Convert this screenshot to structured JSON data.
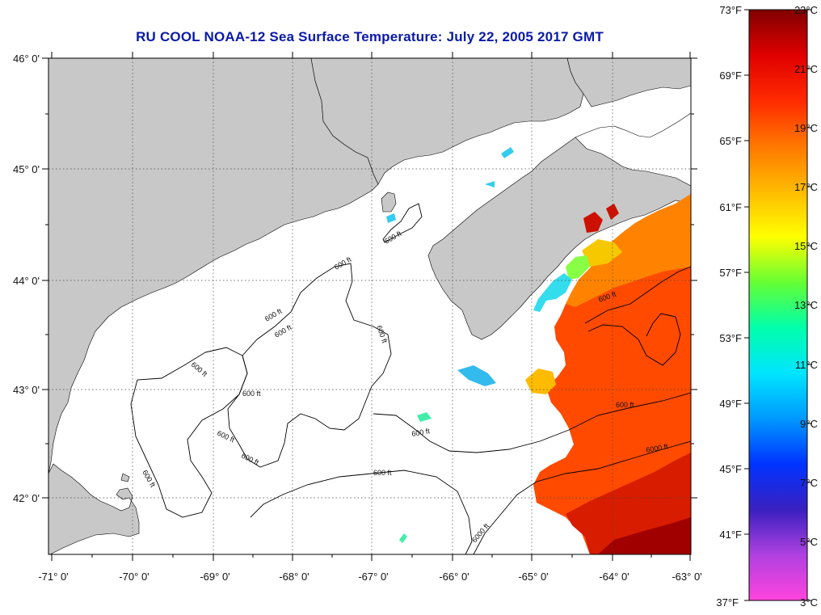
{
  "title": "RU COOL  NOAA-12  Sea Surface Temperature:  July 22, 2005 2017 GMT",
  "map": {
    "lat_ticks": [
      "46° 0'",
      "45° 0'",
      "44° 0'",
      "43° 0'",
      "42° 0'"
    ],
    "lon_ticks": [
      "-71° 0'",
      "-70° 0'",
      "-69° 0'",
      "-68° 0'",
      "-67° 0'",
      "-66° 0'",
      "-65° 0'",
      "-64° 0'",
      "-63° 0'"
    ],
    "lon_range": [
      -71,
      -63
    ],
    "lat_range": [
      41.5,
      46.1
    ],
    "contour_labels": [
      "600 ft",
      "600 ft",
      "600 ft",
      "600 ft",
      "600 ft",
      "600 ft",
      "600 ft",
      "600 ft",
      "600 ft",
      "600 ft",
      "600 ft",
      "600 ft",
      "600 ft",
      "6000 ft",
      "6000 ft",
      "600 ft"
    ],
    "colors": {
      "land": "#c8c8c8",
      "water": "#ffffff",
      "grid": "#444444"
    }
  },
  "colorbar": {
    "fahrenheit_labels": [
      "73°F",
      "69°F",
      "65°F",
      "61°F",
      "57°F",
      "53°F",
      "49°F",
      "45°F",
      "41°F",
      "37°F"
    ],
    "celsius_labels": [
      "23°C",
      "21°C",
      "19°C",
      "17°C",
      "15°C",
      "13°C",
      "11°C",
      "9°C",
      "7°C",
      "5°C",
      "3°C"
    ],
    "range_c": [
      3,
      23
    ],
    "range_f": [
      37,
      73
    ],
    "gradient": [
      "#ff44dd",
      "#b040e0",
      "#3a20c0",
      "#0033ff",
      "#0099ff",
      "#00e5ff",
      "#00ffaa",
      "#66ff33",
      "#ffff00",
      "#ffbb00",
      "#ff7700",
      "#ff2a00",
      "#e00000",
      "#800000"
    ]
  }
}
